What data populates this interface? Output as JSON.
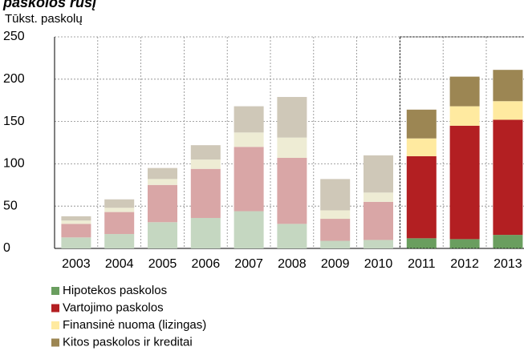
{
  "chart_data": {
    "type": "stacked_bar",
    "title": "paskolos rūšį",
    "y_label": "Tūkst. paskolų",
    "categories": [
      "2003",
      "2004",
      "2005",
      "2006",
      "2007",
      "2008",
      "2009",
      "2010",
      "2011",
      "2012",
      "2013"
    ],
    "series": [
      {
        "name": "Hipotekos paskolos",
        "color": "#6a9e5f",
        "historical_color": "#c5d7c1",
        "values": [
          13,
          17,
          31,
          36,
          44,
          29,
          9,
          10,
          12,
          11,
          16
        ]
      },
      {
        "name": "Vartojimo paskolos",
        "color": "#b31f22",
        "historical_color": "#d9a6a6",
        "values": [
          16,
          26,
          44,
          58,
          76,
          78,
          26,
          45,
          97,
          134,
          136
        ]
      },
      {
        "name": "Finansinė nuoma (lizingas)",
        "color": "#ffeaa0",
        "historical_color": "#eeecd4",
        "values": [
          4,
          5,
          7,
          11,
          17,
          24,
          10,
          11,
          21,
          23,
          22
        ]
      },
      {
        "name": "Kitos paskolos ir kreditai",
        "color": "#9c8653",
        "historical_color": "#cfc8b8",
        "values": [
          5,
          10,
          13,
          17,
          31,
          48,
          37,
          44,
          34,
          35,
          37
        ]
      }
    ],
    "forecast_start_index": 8,
    "ylim": [
      0,
      250
    ],
    "yticks": [
      0,
      50,
      100,
      150,
      200,
      250
    ],
    "grid": true
  }
}
